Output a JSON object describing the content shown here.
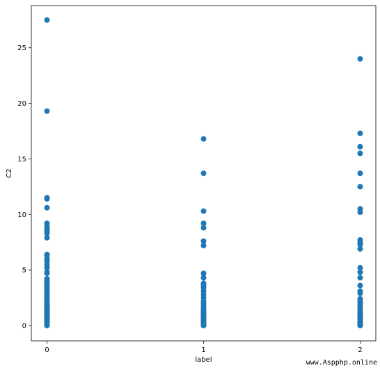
{
  "chart_data": {
    "type": "scatter",
    "title": "",
    "xlabel": "label",
    "ylabel": "C2",
    "xlim": [
      -0.1,
      2.1
    ],
    "ylim": [
      -1.38,
      28.8
    ],
    "x_ticks": [
      0,
      1,
      2
    ],
    "x_tick_labels": [
      "0",
      "1",
      "2"
    ],
    "y_ticks": [
      0,
      5,
      10,
      15,
      20,
      25
    ],
    "y_tick_labels": [
      "0",
      "5",
      "10",
      "15",
      "20",
      "25"
    ],
    "grid": false,
    "marker_color": "#1f77b4",
    "x": [
      0,
      0,
      0,
      0,
      0,
      0,
      0,
      0,
      0,
      0,
      0,
      0,
      0,
      0,
      0,
      0,
      0,
      0,
      0,
      0,
      0,
      0,
      0,
      0,
      0,
      0,
      0,
      0,
      0,
      0,
      0,
      0,
      0,
      0,
      0,
      0,
      0,
      0,
      0,
      0,
      0,
      0,
      0,
      0,
      0,
      0,
      0,
      0,
      0,
      0,
      0,
      0,
      0,
      0,
      0,
      0,
      0,
      0,
      0,
      0,
      1,
      1,
      1,
      1,
      1,
      1,
      1,
      1,
      1,
      1,
      1,
      1,
      1,
      1,
      1,
      1,
      1,
      1,
      1,
      1,
      1,
      1,
      1,
      1,
      1,
      1,
      1,
      1,
      1,
      1,
      1,
      1,
      1,
      1,
      1,
      1,
      1,
      1,
      1,
      1,
      1,
      1,
      1,
      1,
      2,
      2,
      2,
      2,
      2,
      2,
      2,
      2,
      2,
      2,
      2,
      2,
      2,
      2,
      2,
      2,
      2,
      2,
      2,
      2,
      2,
      2,
      2,
      2,
      2,
      2,
      2,
      2,
      2,
      2,
      2,
      2,
      2,
      2,
      2,
      2,
      2,
      2,
      2,
      2,
      2,
      2,
      2,
      2,
      2,
      2,
      2,
      2
    ],
    "y": [
      27.5,
      19.3,
      11.5,
      11.4,
      10.6,
      9.2,
      8.9,
      8.7,
      8.5,
      8.3,
      7.9,
      6.4,
      6.3,
      6.0,
      5.8,
      5.5,
      5.2,
      4.8,
      4.7,
      4.2,
      4.0,
      3.8,
      3.6,
      3.4,
      3.2,
      3.0,
      2.8,
      2.6,
      2.4,
      2.2,
      2.0,
      1.9,
      1.8,
      1.7,
      1.6,
      1.5,
      1.4,
      1.3,
      1.2,
      1.1,
      1.0,
      0.9,
      0.8,
      0.75,
      0.7,
      0.6,
      0.55,
      0.5,
      0.45,
      0.4,
      0.35,
      0.3,
      0.25,
      0.2,
      0.15,
      0.1,
      0.08,
      0.05,
      0.02,
      0.0,
      16.8,
      13.7,
      10.3,
      9.2,
      8.8,
      7.6,
      7.2,
      4.7,
      4.3,
      3.8,
      3.6,
      3.4,
      3.1,
      2.8,
      2.5,
      2.2,
      2.0,
      1.8,
      1.6,
      1.4,
      1.3,
      1.2,
      1.1,
      1.0,
      0.9,
      0.8,
      0.7,
      0.6,
      0.55,
      0.5,
      0.45,
      0.4,
      0.35,
      0.3,
      0.25,
      0.2,
      0.15,
      0.1,
      0.08,
      0.06,
      0.04,
      0.02,
      0.01,
      0.0,
      24.0,
      17.3,
      16.1,
      15.5,
      13.7,
      12.5,
      10.5,
      10.2,
      7.7,
      7.5,
      7.3,
      6.9,
      5.2,
      4.8,
      4.3,
      3.6,
      3.1,
      2.9,
      2.4,
      2.2,
      2.0,
      1.8,
      1.6,
      1.4,
      1.3,
      1.1,
      1.0,
      0.9,
      0.8,
      0.7,
      0.65,
      0.6,
      0.55,
      0.5,
      0.45,
      0.4,
      0.35,
      0.3,
      0.25,
      0.2,
      0.15,
      0.12,
      0.1,
      0.08,
      0.06,
      0.04,
      0.02,
      0.0
    ]
  },
  "watermark": "www.Aspphp.online"
}
